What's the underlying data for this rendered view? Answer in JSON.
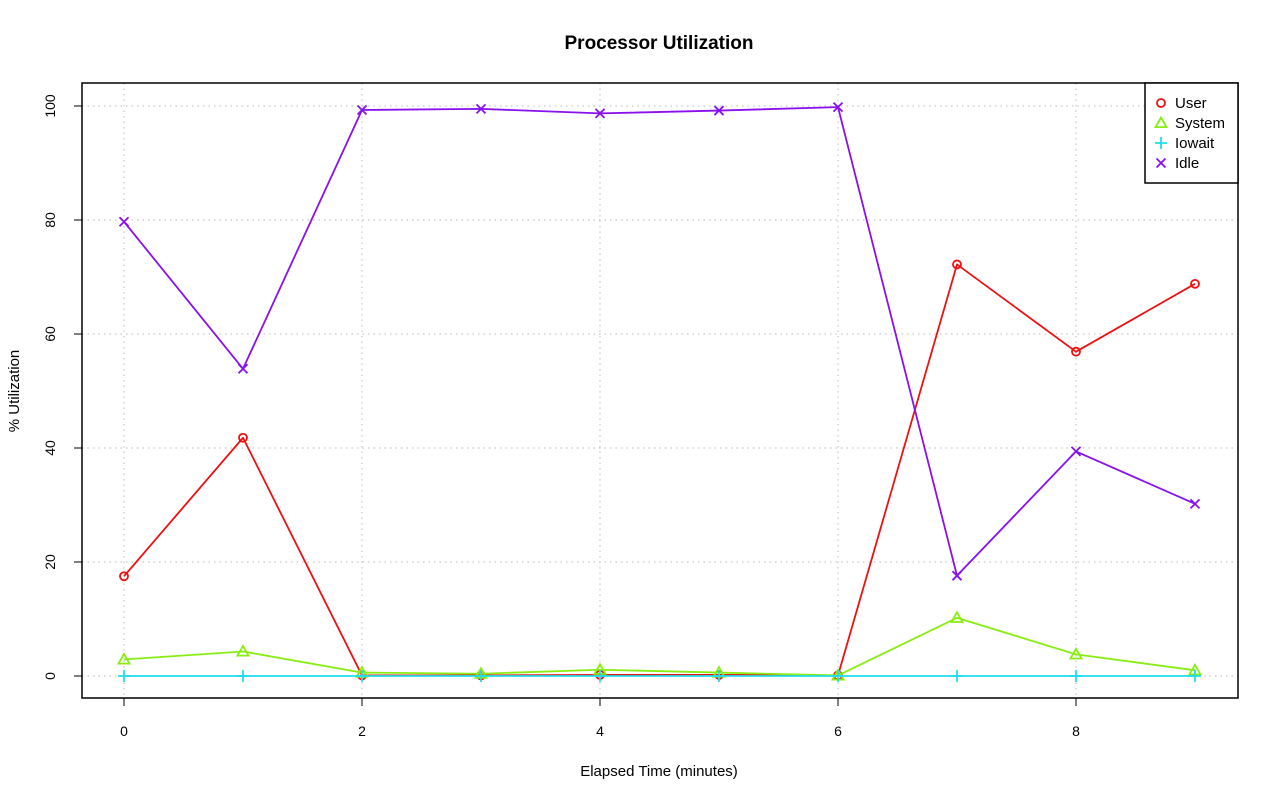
{
  "chart_data": {
    "type": "line",
    "title": "Processor Utilization",
    "xlabel": "Elapsed Time (minutes)",
    "ylabel": "% Utilization",
    "x": [
      0,
      1,
      2,
      3,
      4,
      5,
      6,
      7,
      8,
      9
    ],
    "xlim": [
      0,
      9
    ],
    "ylim": [
      0,
      100
    ],
    "x_ticks": [
      "0",
      "2",
      "4",
      "6",
      "8"
    ],
    "y_ticks": [
      "0",
      "20",
      "40",
      "60",
      "80",
      "100"
    ],
    "grid": true,
    "grid_style": "dotted",
    "legend_position": "top-right",
    "series": [
      {
        "name": "User",
        "marker": "circle",
        "color": "#ee1111",
        "values": [
          17.5,
          41.8,
          0.1,
          0.1,
          0.2,
          0.2,
          0.1,
          72.2,
          56.9,
          68.8
        ]
      },
      {
        "name": "System",
        "marker": "triangle",
        "color": "#88ee11",
        "values": [
          2.9,
          4.3,
          0.6,
          0.4,
          1.1,
          0.6,
          0.1,
          10.2,
          3.8,
          1.0
        ]
      },
      {
        "name": "Iowait",
        "marker": "plus",
        "color": "#22ddee",
        "values": [
          0,
          0,
          0,
          0,
          0,
          0,
          0,
          0,
          0,
          0
        ]
      },
      {
        "name": "Idle",
        "marker": "cross",
        "color": "#8811ee",
        "values": [
          79.7,
          53.9,
          99.3,
          99.5,
          98.7,
          99.2,
          99.8,
          17.6,
          39.4,
          30.2
        ]
      }
    ]
  }
}
